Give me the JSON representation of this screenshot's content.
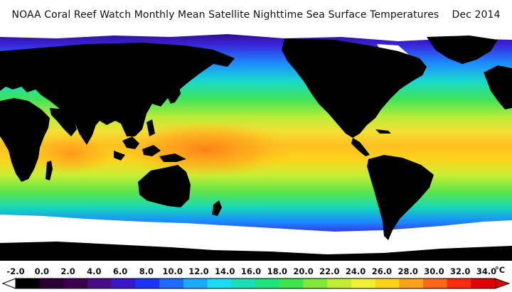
{
  "title": "NOAA Coral Reef Watch Monthly Mean Satellite Nighttime Sea Surface Temperatures    Dec 2014",
  "legend": {
    "ticks": [
      "-2.0",
      "0.0",
      "2.0",
      "4.0",
      "6.0",
      "8.0",
      "10.0",
      "12.0",
      "14.0",
      "16.0",
      "18.0",
      "20.0",
      "22.0",
      "24.0",
      "26.0",
      "28.0",
      "30.0",
      "32.0",
      "34.0"
    ],
    "unit": "°C",
    "colors": [
      "#000000",
      "#2b0033",
      "#3a004e",
      "#4b0a86",
      "#3a18c8",
      "#1a33ff",
      "#1e6bff",
      "#1aa9ff",
      "#19dcf0",
      "#18e0b4",
      "#20e07a",
      "#3fe44a",
      "#7fe83a",
      "#bfec36",
      "#eef032",
      "#ffd21c",
      "#ffa01a",
      "#ff6818",
      "#ff2a10",
      "#e00000"
    ]
  },
  "map": {
    "land_color": "#000000",
    "ice_color": "#ffffff",
    "features": [
      "africa",
      "europe",
      "asia",
      "north-america",
      "south-america",
      "australia",
      "antarctica",
      "greenland",
      "new-zealand"
    ]
  }
}
